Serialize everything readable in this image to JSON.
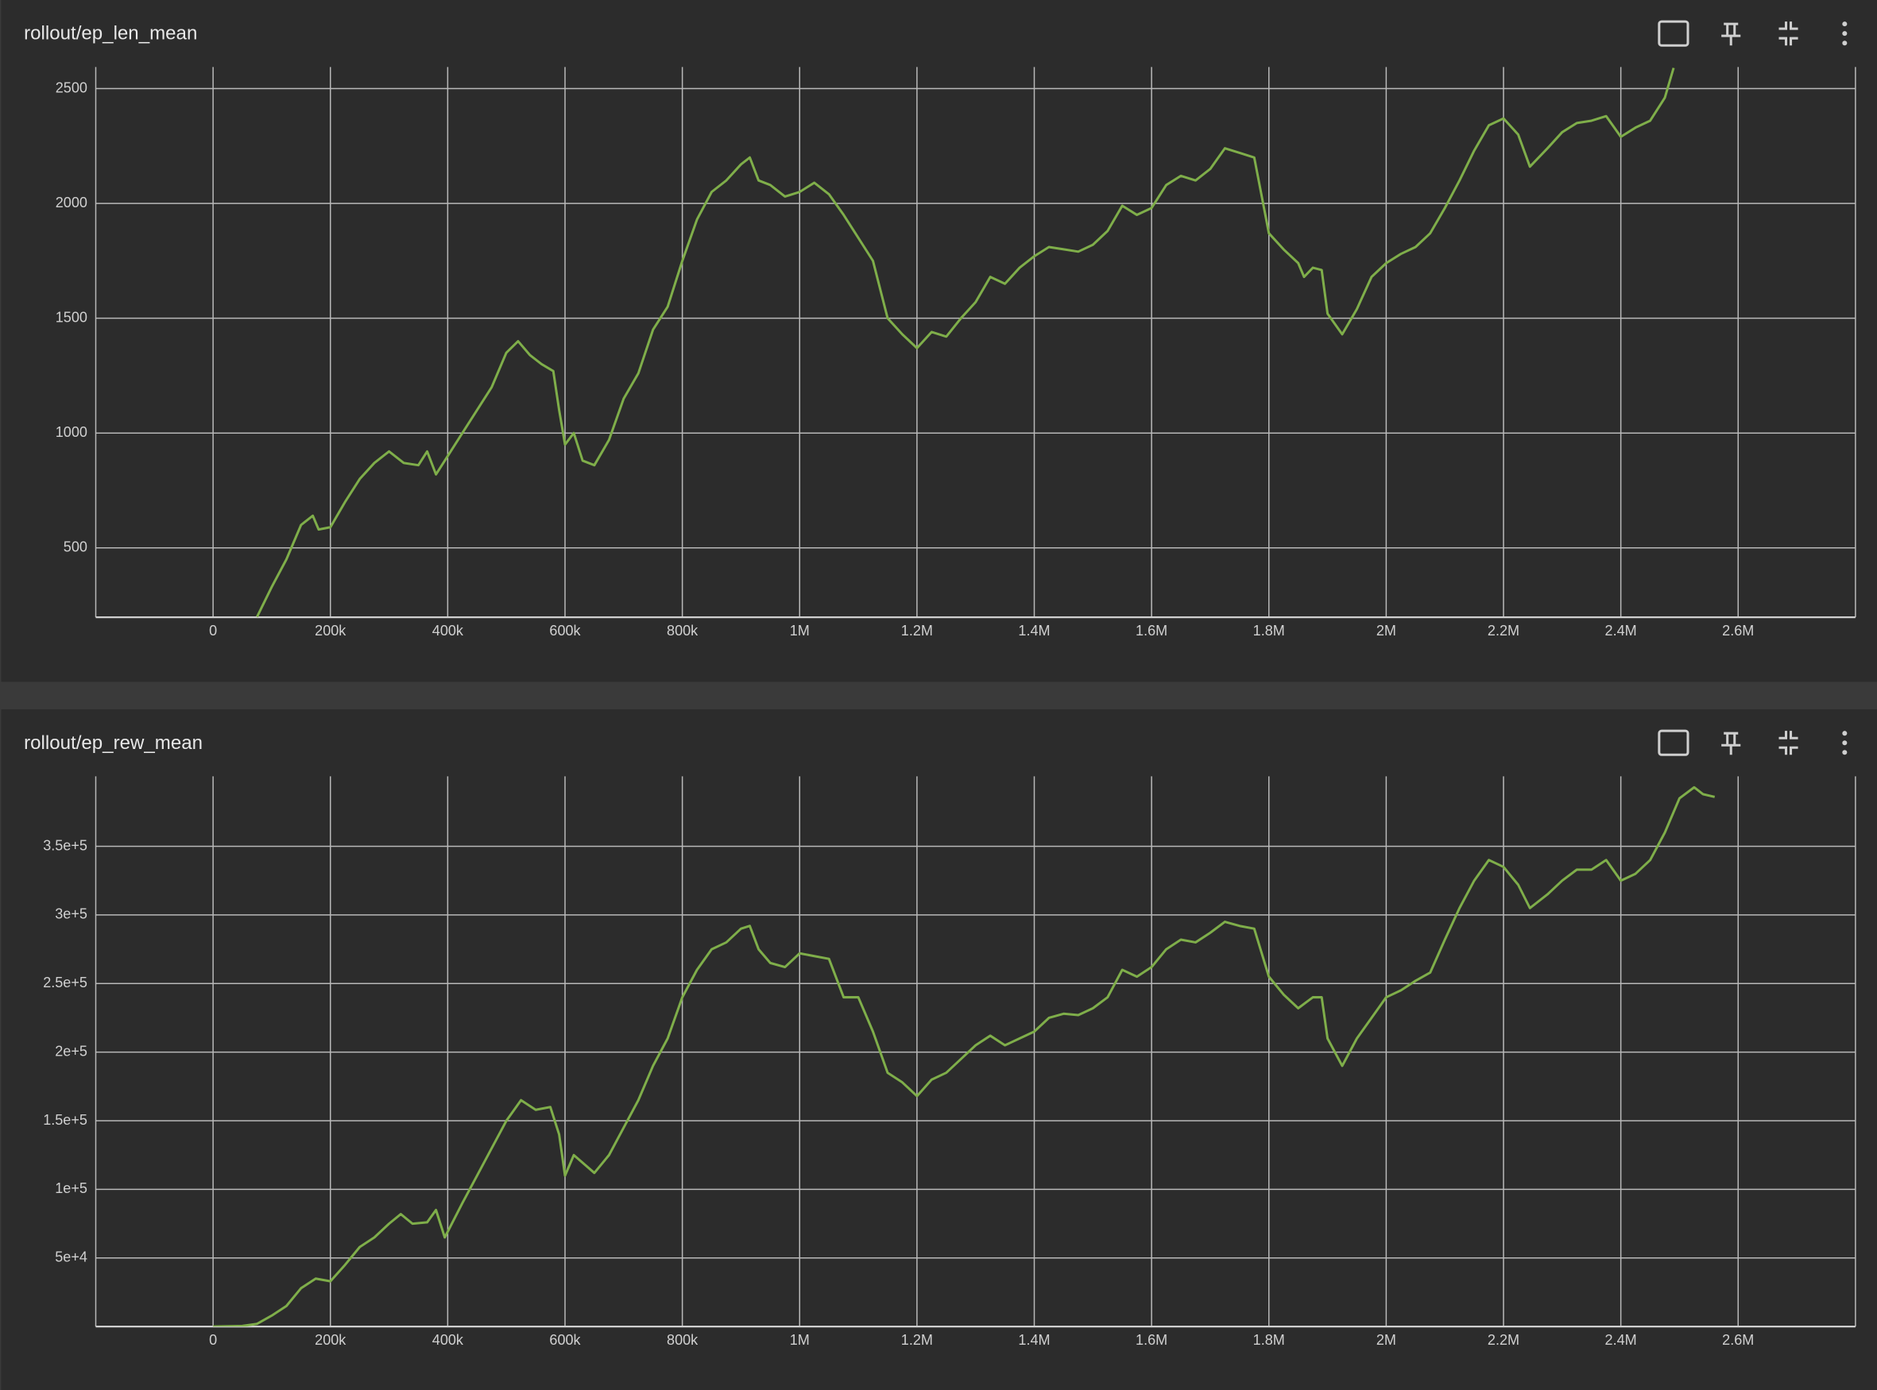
{
  "chart_data": [
    {
      "type": "line",
      "title": "rollout/ep_len_mean",
      "color": "#7fae4a",
      "grid": true,
      "x": [
        75000,
        100000,
        125000,
        150000,
        170000,
        180000,
        200000,
        225000,
        250000,
        275000,
        300000,
        325000,
        350000,
        365000,
        380000,
        400000,
        425000,
        450000,
        475000,
        500000,
        520000,
        540000,
        560000,
        580000,
        590000,
        600000,
        615000,
        630000,
        650000,
        675000,
        700000,
        725000,
        750000,
        775000,
        800000,
        825000,
        850000,
        875000,
        900000,
        915000,
        930000,
        950000,
        975000,
        1000000,
        1025000,
        1050000,
        1075000,
        1100000,
        1125000,
        1150000,
        1175000,
        1200000,
        1225000,
        1250000,
        1275000,
        1300000,
        1325000,
        1350000,
        1375000,
        1400000,
        1425000,
        1450000,
        1475000,
        1500000,
        1525000,
        1550000,
        1575000,
        1600000,
        1625000,
        1650000,
        1675000,
        1700000,
        1725000,
        1750000,
        1775000,
        1800000,
        1825000,
        1850000,
        1860000,
        1875000,
        1890000,
        1900000,
        1925000,
        1950000,
        1975000,
        2000000,
        2025000,
        2050000,
        2075000,
        2100000,
        2125000,
        2150000,
        2175000,
        2200000,
        2225000,
        2245000,
        2275000,
        2300000,
        2325000,
        2350000,
        2375000,
        2400000,
        2425000,
        2450000,
        2475000,
        2490000
      ],
      "values": [
        200,
        330,
        450,
        600,
        640,
        580,
        590,
        700,
        800,
        870,
        920,
        870,
        860,
        920,
        820,
        900,
        1000,
        1100,
        1200,
        1350,
        1400,
        1340,
        1300,
        1270,
        1100,
        950,
        1000,
        880,
        860,
        970,
        1150,
        1260,
        1450,
        1550,
        1750,
        1930,
        2050,
        2100,
        2170,
        2200,
        2100,
        2080,
        2030,
        2050,
        2090,
        2040,
        1950,
        1850,
        1750,
        1500,
        1430,
        1370,
        1440,
        1420,
        1500,
        1570,
        1680,
        1650,
        1720,
        1770,
        1810,
        1800,
        1790,
        1820,
        1880,
        1990,
        1950,
        1980,
        2080,
        2120,
        2100,
        2150,
        2240,
        2220,
        2200,
        1870,
        1800,
        1740,
        1680,
        1720,
        1710,
        1520,
        1430,
        1540,
        1680,
        1740,
        1780,
        1810,
        1870,
        1980,
        2100,
        2230,
        2340,
        2370,
        2300,
        2160,
        2240,
        2310,
        2350,
        2360,
        2380,
        2290,
        2330,
        2360,
        2460,
        2590
      ],
      "xlim": [
        -200000,
        2800000
      ],
      "xticks": [
        0,
        {
          "value": 200000,
          "label": "200k"
        },
        {
          "value": 400000,
          "label": "400k"
        },
        {
          "value": 600000,
          "label": "600k"
        },
        {
          "value": 800000,
          "label": "800k"
        },
        {
          "value": 1000000,
          "label": "1M"
        },
        {
          "value": 1200000,
          "label": "1.2M"
        },
        {
          "value": 1400000,
          "label": "1.4M"
        },
        {
          "value": 1600000,
          "label": "1.6M"
        },
        {
          "value": 1800000,
          "label": "1.8M"
        },
        {
          "value": 2000000,
          "label": "2M"
        },
        {
          "value": 2200000,
          "label": "2.2M"
        },
        {
          "value": 2400000,
          "label": "2.4M"
        },
        {
          "value": 2600000,
          "label": "2.6M"
        }
      ],
      "ylim": [
        198,
        2594
      ],
      "yticks": [
        500,
        1000,
        1500,
        2000,
        2500
      ]
    },
    {
      "type": "line",
      "title": "rollout/ep_rew_mean",
      "color": "#7fae4a",
      "grid": true,
      "x": [
        0,
        50000,
        75000,
        100000,
        125000,
        150000,
        175000,
        200000,
        225000,
        250000,
        275000,
        300000,
        320000,
        340000,
        365000,
        380000,
        395000,
        425000,
        450000,
        475000,
        500000,
        525000,
        550000,
        575000,
        590000,
        600000,
        615000,
        650000,
        675000,
        700000,
        725000,
        750000,
        775000,
        800000,
        825000,
        850000,
        875000,
        900000,
        915000,
        930000,
        950000,
        975000,
        1000000,
        1025000,
        1050000,
        1075000,
        1100000,
        1125000,
        1150000,
        1175000,
        1200000,
        1225000,
        1250000,
        1275000,
        1300000,
        1325000,
        1350000,
        1375000,
        1400000,
        1425000,
        1450000,
        1475000,
        1500000,
        1525000,
        1550000,
        1575000,
        1600000,
        1625000,
        1650000,
        1675000,
        1700000,
        1725000,
        1750000,
        1775000,
        1800000,
        1825000,
        1850000,
        1875000,
        1890000,
        1900000,
        1925000,
        1950000,
        1975000,
        2000000,
        2025000,
        2050000,
        2075000,
        2100000,
        2125000,
        2150000,
        2175000,
        2200000,
        2225000,
        2245000,
        2275000,
        2300000,
        2325000,
        2350000,
        2375000,
        2400000,
        2425000,
        2450000,
        2475000,
        2500000,
        2525000,
        2540000,
        2560000
      ],
      "values": [
        0,
        500,
        2000,
        8000,
        15000,
        28000,
        35000,
        33000,
        45000,
        58000,
        65000,
        75000,
        82000,
        75000,
        76000,
        85000,
        65000,
        90000,
        110000,
        130000,
        150000,
        165000,
        158000,
        160000,
        140000,
        110000,
        125000,
        112000,
        125000,
        145000,
        165000,
        190000,
        210000,
        240000,
        260000,
        275000,
        280000,
        290000,
        292000,
        275000,
        265000,
        262000,
        272000,
        270000,
        268000,
        240000,
        240000,
        215000,
        185000,
        178000,
        168000,
        180000,
        185000,
        195000,
        205000,
        212000,
        205000,
        210000,
        215000,
        225000,
        228000,
        227000,
        232000,
        240000,
        260000,
        255000,
        262000,
        275000,
        282000,
        280000,
        287000,
        295000,
        292000,
        290000,
        255000,
        242000,
        232000,
        240000,
        240000,
        210000,
        190000,
        210000,
        225000,
        240000,
        245000,
        252000,
        258000,
        282000,
        305000,
        325000,
        340000,
        335000,
        322000,
        305000,
        315000,
        325000,
        333000,
        333000,
        340000,
        325000,
        330000,
        340000,
        360000,
        385000,
        393000,
        388000,
        386000
      ],
      "xlim": [
        -200000,
        2800000
      ],
      "xticks": [
        0,
        {
          "value": 200000,
          "label": "200k"
        },
        {
          "value": 400000,
          "label": "400k"
        },
        {
          "value": 600000,
          "label": "600k"
        },
        {
          "value": 800000,
          "label": "800k"
        },
        {
          "value": 1000000,
          "label": "1M"
        },
        {
          "value": 1200000,
          "label": "1.2M"
        },
        {
          "value": 1400000,
          "label": "1.4M"
        },
        {
          "value": 1600000,
          "label": "1.6M"
        },
        {
          "value": 1800000,
          "label": "1.8M"
        },
        {
          "value": 2000000,
          "label": "2M"
        },
        {
          "value": 2200000,
          "label": "2.2M"
        },
        {
          "value": 2400000,
          "label": "2.4M"
        },
        {
          "value": 2600000,
          "label": "2.6M"
        }
      ],
      "ylim": [
        0,
        401000
      ],
      "yticks": [
        {
          "value": 50000,
          "label": "5e+4"
        },
        {
          "value": 100000,
          "label": "1e+5"
        },
        {
          "value": 150000,
          "label": "1.5e+5"
        },
        {
          "value": 200000,
          "label": "2e+5"
        },
        {
          "value": 250000,
          "label": "2.5e+5"
        },
        {
          "value": 300000,
          "label": "3e+5"
        },
        {
          "value": 350000,
          "label": "3.5e+5"
        }
      ]
    }
  ]
}
